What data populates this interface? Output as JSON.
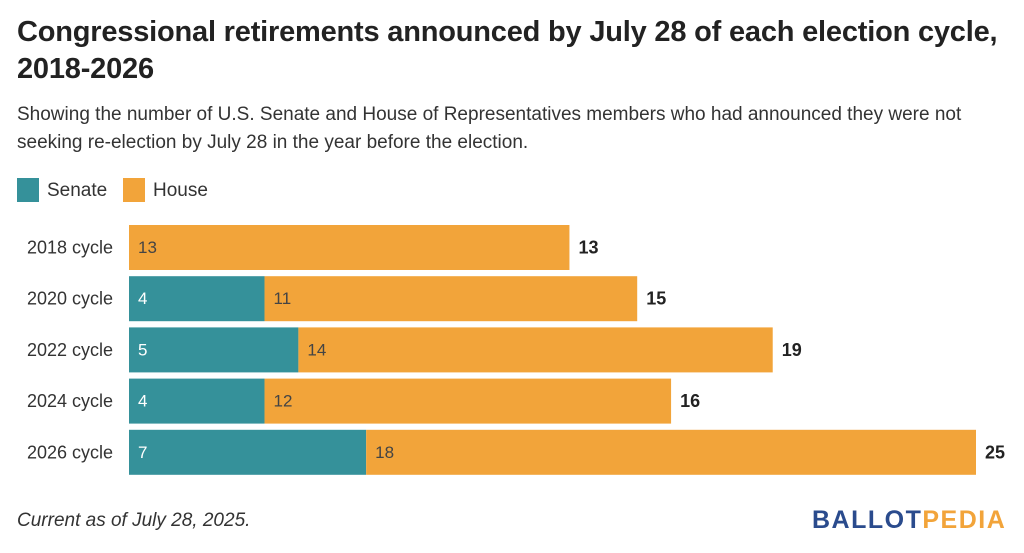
{
  "header": {
    "title": "Congressional retirements announced by July 28 of each election cycle, 2018-2026",
    "subtitle": "Showing the number of U.S. Senate and House of Representatives members who had announced they were not seeking re-election by July 28 in the year before the election."
  },
  "legend": {
    "position": "top-left",
    "items": [
      {
        "label": "Senate",
        "color": "#35919a"
      },
      {
        "label": "House",
        "color": "#f2a43a"
      }
    ]
  },
  "chart_data": {
    "type": "bar",
    "orientation": "horizontal",
    "stacked": true,
    "categories": [
      "2018 cycle",
      "2020 cycle",
      "2022 cycle",
      "2024 cycle",
      "2026 cycle"
    ],
    "series": [
      {
        "name": "Senate",
        "color": "#35919a",
        "values": [
          0,
          4,
          5,
          4,
          7
        ]
      },
      {
        "name": "House",
        "color": "#f2a43a",
        "values": [
          13,
          11,
          14,
          12,
          18
        ]
      }
    ],
    "totals": [
      13,
      15,
      19,
      16,
      25
    ],
    "xlim": [
      0,
      25
    ],
    "grid": false,
    "title": "Congressional retirements announced by July 28 of each election cycle, 2018-2026",
    "xlabel": "",
    "ylabel": ""
  },
  "footer": {
    "note": "Current as of July 28, 2025."
  },
  "logo": {
    "part1": "BALLOT",
    "part2": "PEDIA",
    "color1": "#2a4b8d",
    "color2": "#f2a43a"
  }
}
